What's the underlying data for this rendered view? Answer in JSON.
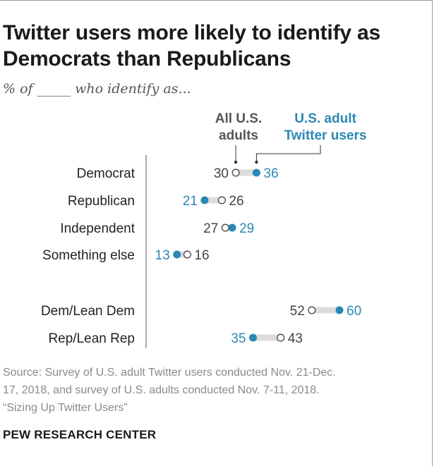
{
  "title_line1": "Twitter users more likely to identify as",
  "title_line2": "Democrats than Republicans",
  "subtitle": "% of _____ who identify as...",
  "colors": {
    "twitter": "#2b88b4",
    "adults_fill": "#ffffff",
    "adults_stroke": "#3a3a3a",
    "connector": "#dcdcdc",
    "label_text": "#222222",
    "value_text": "#444444"
  },
  "chart_data": {
    "type": "dot-plot",
    "legend": {
      "adults_line1": "All U.S.",
      "adults_line2": "adults",
      "twitter_line1": "U.S. adult",
      "twitter_line2": "Twitter users"
    },
    "categories": [
      "Democrat",
      "Republican",
      "Independent",
      "Something else",
      "Dem/Lean Dem",
      "Rep/Lean Rep"
    ],
    "series": [
      {
        "name": "All U.S. adults",
        "values": [
          30,
          26,
          27,
          16,
          52,
          43
        ]
      },
      {
        "name": "U.S. adult Twitter users",
        "values": [
          36,
          21,
          29,
          13,
          60,
          35
        ]
      }
    ]
  },
  "source_line1": "Source: Survey of U.S. adult Twitter users conducted Nov. 21-Dec.",
  "source_line2": "17, 2018, and survey of U.S. adults conducted Nov. 7-11, 2018.",
  "source_line3": "“Sizing Up Twitter Users”",
  "credit": "PEW RESEARCH CENTER"
}
